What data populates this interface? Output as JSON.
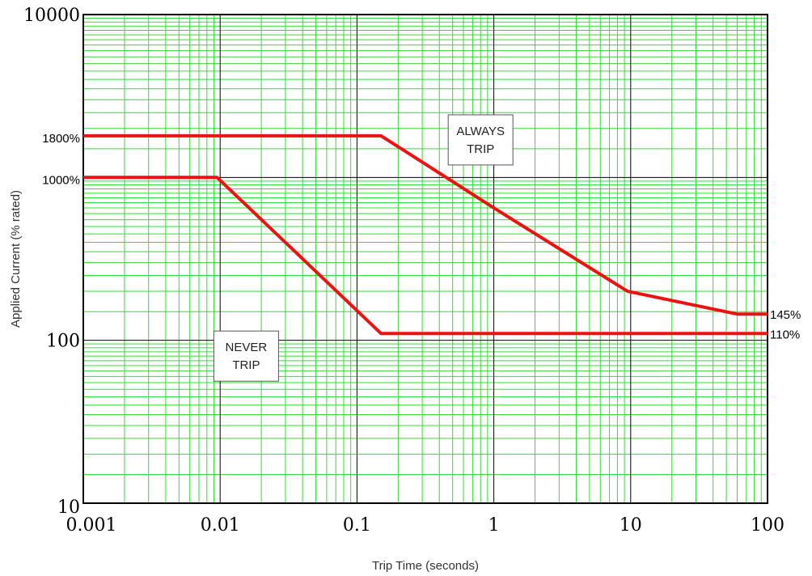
{
  "chart_data": {
    "type": "line",
    "title": "",
    "xlabel": "Trip Time (seconds)",
    "ylabel": "Applied Current (% rated)",
    "x_scale": "log",
    "y_scale": "log",
    "xlim": [
      0.001,
      100
    ],
    "ylim": [
      10,
      10000
    ],
    "grid": true,
    "grid_color": "#33dd33",
    "line_color": "#ee1111",
    "x_ticks": [
      "0.001",
      "0.01",
      "0.1",
      "1",
      "10",
      "100"
    ],
    "y_ticks": [
      "10",
      "100",
      "10000"
    ],
    "y_markers": [
      {
        "label": "1800%",
        "value": 1800
      },
      {
        "label": "1000%",
        "value": 1000
      }
    ],
    "series": [
      {
        "points": [
          [
            0.001,
            1800
          ],
          [
            0.15,
            1800
          ],
          [
            1,
            650
          ],
          [
            9.5,
            200
          ],
          [
            60,
            145
          ],
          [
            100,
            145
          ]
        ],
        "end_label": "145%"
      },
      {
        "points": [
          [
            0.001,
            1000
          ],
          [
            0.0095,
            1000
          ],
          [
            0.15,
            110
          ],
          [
            100,
            110
          ]
        ],
        "end_label": "110%"
      }
    ],
    "annotations": [
      {
        "lines": [
          "ALWAYS",
          "TRIP"
        ],
        "x": 0.8,
        "y": 1700
      },
      {
        "lines": [
          "NEVER",
          "TRIP"
        ],
        "x": 0.0155,
        "y": 80
      }
    ]
  }
}
